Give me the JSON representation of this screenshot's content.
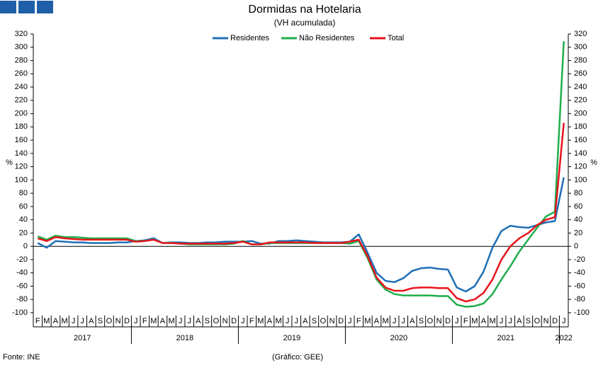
{
  "chart_data": {
    "type": "line",
    "title": "Dormidas na Hotelaria",
    "subtitle": "(VH acumulada)",
    "y_label": "%",
    "y2_label": "%",
    "source": "Fonte: INE",
    "credit": "(Gráfico: GEE)",
    "ylim": [
      -100,
      320
    ],
    "yticks": [
      -100,
      -80,
      -60,
      -40,
      -20,
      0,
      20,
      40,
      60,
      80,
      100,
      120,
      140,
      160,
      180,
      200,
      220,
      240,
      260,
      280,
      300,
      320
    ],
    "groups": [
      {
        "name": "2017",
        "categories": [
          "F",
          "M",
          "A",
          "M",
          "J",
          "J",
          "A",
          "S",
          "O",
          "N",
          "D"
        ]
      },
      {
        "name": "2018",
        "categories": [
          "J",
          "F",
          "M",
          "A",
          "M",
          "J",
          "J",
          "A",
          "S",
          "O",
          "N",
          "D"
        ]
      },
      {
        "name": "2019",
        "categories": [
          "J",
          "F",
          "M",
          "A",
          "M",
          "J",
          "J",
          "A",
          "S",
          "O",
          "N",
          "D"
        ]
      },
      {
        "name": "2020",
        "categories": [
          "J",
          "F",
          "M",
          "A",
          "M",
          "J",
          "J",
          "A",
          "S",
          "O",
          "N",
          "D"
        ]
      },
      {
        "name": "2021",
        "categories": [
          "J",
          "F",
          "M",
          "A",
          "M",
          "J",
          "J",
          "A",
          "S",
          "O",
          "N",
          "D"
        ]
      },
      {
        "name": "2022",
        "categories": [
          "J"
        ]
      }
    ],
    "series": [
      {
        "name": "Residentes",
        "color": "#1f6fb5",
        "values": [
          5,
          -2,
          8,
          7,
          6,
          6,
          5,
          5,
          5,
          6,
          6,
          8,
          9,
          12,
          5,
          6,
          6,
          5,
          5,
          6,
          6,
          7,
          7,
          7,
          8,
          4,
          4,
          8,
          8,
          9,
          8,
          7,
          6,
          6,
          6,
          7,
          18,
          -10,
          -40,
          -52,
          -54,
          -48,
          -37,
          -33,
          -32,
          -34,
          -35,
          -62,
          -68,
          -60,
          -38,
          -2,
          23,
          31,
          29,
          28,
          32,
          36,
          38,
          104
        ]
      },
      {
        "name": "Não Residentes",
        "color": "#1fae4b",
        "values": [
          15,
          10,
          16,
          14,
          14,
          13,
          12,
          12,
          12,
          12,
          12,
          8,
          8,
          10,
          5,
          5,
          4,
          3,
          3,
          3,
          3,
          3,
          4,
          8,
          3,
          3,
          5,
          5,
          5,
          5,
          5,
          5,
          5,
          5,
          5,
          4,
          8,
          -18,
          -50,
          -65,
          -72,
          -74,
          -74,
          -74,
          -74,
          -75,
          -75,
          -88,
          -91,
          -90,
          -86,
          -72,
          -50,
          -30,
          -8,
          10,
          28,
          45,
          52,
          309
        ]
      },
      {
        "name": "Total",
        "color": "#e8141b",
        "values": [
          12,
          8,
          14,
          12,
          11,
          10,
          10,
          10,
          10,
          10,
          10,
          7,
          8,
          10,
          5,
          5,
          4,
          4,
          4,
          4,
          4,
          4,
          5,
          7,
          3,
          3,
          6,
          6,
          6,
          6,
          6,
          5,
          5,
          5,
          5,
          7,
          10,
          -15,
          -47,
          -62,
          -67,
          -67,
          -63,
          -62,
          -62,
          -63,
          -63,
          -78,
          -83,
          -80,
          -70,
          -50,
          -20,
          0,
          12,
          20,
          32,
          40,
          44,
          186
        ]
      }
    ]
  }
}
